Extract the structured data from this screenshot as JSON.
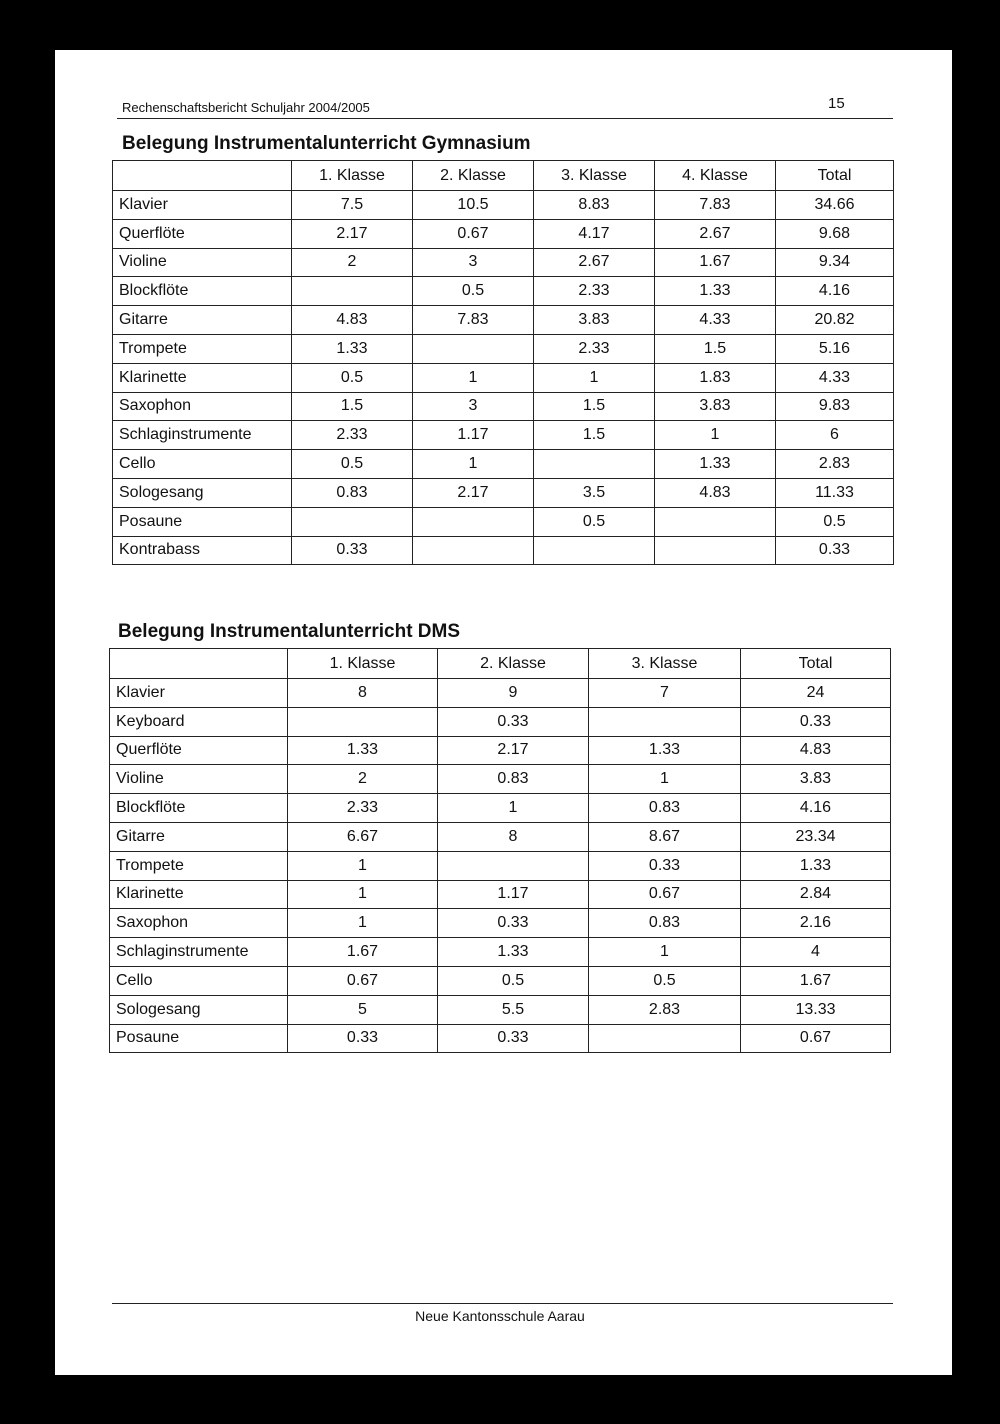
{
  "header": {
    "title": "Rechenschaftsbericht Schuljahr 2004/2005",
    "page_number": 15
  },
  "tables": [
    {
      "title": "Belegung Instrumentalunterricht Gymnasium",
      "columns": [
        null,
        "1. Klasse",
        "2. Klasse",
        "3. Klasse",
        "4. Klasse",
        "Total"
      ],
      "rows": [
        [
          "Klavier",
          7.5,
          10.5,
          8.83,
          7.83,
          34.66
        ],
        [
          "Querflöte",
          2.17,
          0.67,
          4.17,
          2.67,
          9.68
        ],
        [
          "Violine",
          2,
          3,
          2.67,
          1.67,
          9.34
        ],
        [
          "Blockflöte",
          null,
          0.5,
          2.33,
          1.33,
          4.16
        ],
        [
          "Gitarre",
          4.83,
          7.83,
          3.83,
          4.33,
          20.82
        ],
        [
          "Trompete",
          1.33,
          null,
          2.33,
          1.5,
          5.16
        ],
        [
          "Klarinette",
          0.5,
          1,
          1,
          1.83,
          4.33
        ],
        [
          "Saxophon",
          1.5,
          3,
          1.5,
          3.83,
          9.83
        ],
        [
          "Schlaginstrumente",
          2.33,
          1.17,
          1.5,
          1,
          6
        ],
        [
          "Cello",
          0.5,
          1,
          null,
          1.33,
          2.83
        ],
        [
          "Sologesang",
          0.83,
          2.17,
          3.5,
          4.83,
          11.33
        ],
        [
          "Posaune",
          null,
          null,
          0.5,
          null,
          0.5
        ],
        [
          "Kontrabass",
          0.33,
          null,
          null,
          null,
          0.33
        ]
      ]
    },
    {
      "title": "Belegung Instrumentalunterricht DMS",
      "columns": [
        null,
        "1. Klasse",
        "2. Klasse",
        "3. Klasse",
        "Total"
      ],
      "rows": [
        [
          "Klavier",
          8,
          9,
          7,
          24
        ],
        [
          "Keyboard",
          null,
          0.33,
          null,
          0.33
        ],
        [
          "Querflöte",
          1.33,
          2.17,
          1.33,
          4.83
        ],
        [
          "Violine",
          2,
          0.83,
          1,
          3.83
        ],
        [
          "Blockflöte",
          2.33,
          1,
          0.83,
          4.16
        ],
        [
          "Gitarre",
          6.67,
          8,
          8.67,
          23.34
        ],
        [
          "Trompete",
          1,
          null,
          0.33,
          1.33
        ],
        [
          "Klarinette",
          1,
          1.17,
          0.67,
          2.84
        ],
        [
          "Saxophon",
          1,
          0.33,
          0.83,
          2.16
        ],
        [
          "Schlaginstrumente",
          1.67,
          1.33,
          1,
          4
        ],
        [
          "Cello",
          0.67,
          0.5,
          0.5,
          1.67
        ],
        [
          "Sologesang",
          5,
          5.5,
          2.83,
          13.33
        ],
        [
          "Posaune",
          0.33,
          0.33,
          null,
          0.67
        ]
      ]
    }
  ],
  "footer": "Neue Kantonsschule Aarau"
}
